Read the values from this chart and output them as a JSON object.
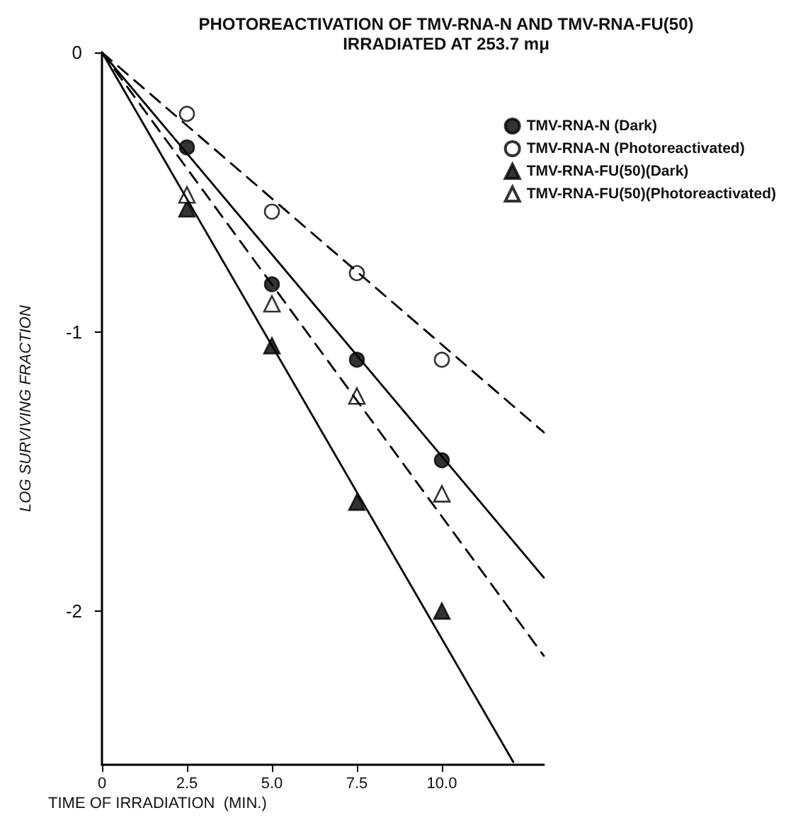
{
  "chart_data": {
    "type": "scatter",
    "title": "PHOTOREACTIVATION OF TMV-RNA-N AND TMV-RNA-FU(50)",
    "subtitle": "IRRADIATED AT 253.7 mμ",
    "xlabel": "TIME OF IRRADIATION  (MIN.)",
    "ylabel": "LOG SURVIVING FRACTION",
    "x": [
      2.5,
      5,
      7.5,
      10
    ],
    "series": [
      {
        "name": "TMV-RNA-N (Dark)",
        "color": "#000000",
        "marker": "circle",
        "values": [
          -0.34,
          -0.83,
          -1.1,
          -1.46
        ]
      },
      {
        "name": "TMV-RNA-N (Photoreactivated)",
        "color": "#ffffff",
        "marker": "circle",
        "values": [
          -0.22,
          -0.57,
          -0.79,
          -1.1
        ]
      },
      {
        "name": "TMV-RNA-FU(50)(Dark)",
        "color": "#000000",
        "marker": "triangle",
        "values": [
          -0.56,
          -1.05,
          -1.61,
          -2.0
        ]
      },
      {
        "name": "TMV-RNA-FU(50)(Photoreactivated)",
        "color": "#ffffff",
        "marker": "triangle",
        "values": [
          -0.51,
          -0.9,
          -1.23,
          -1.58
        ]
      },
      {
        "type": "line",
        "color": "#000000",
        "line_style": "solid",
        "marker": "none",
        "x": [
          0,
          13
        ],
        "values": [
          0,
          -1.88
        ]
      },
      {
        "type": "line",
        "color": "#000000",
        "line_style": "dashed",
        "marker": "none",
        "x": [
          0,
          13
        ],
        "values": [
          0,
          -1.36
        ]
      },
      {
        "type": "line",
        "color": "#000000",
        "line_style": "solid",
        "marker": "none",
        "x": [
          0,
          12.1
        ],
        "values": [
          0,
          -2.54
        ]
      },
      {
        "type": "line",
        "color": "#000000",
        "line_style": "dashed",
        "marker": "none",
        "x": [
          0,
          13
        ],
        "values": [
          0,
          -2.16
        ]
      }
    ],
    "xlim": [
      0,
      13
    ],
    "xticks": [
      0,
      2.5,
      {
        "value": 5,
        "label": "5.0"
      },
      7.5,
      {
        "value": 10,
        "label": "10.0"
      }
    ],
    "ylim": [
      -2.55,
      0
    ],
    "yticks": [
      0,
      -1,
      -2
    ],
    "grid": false,
    "legend": "top right"
  }
}
